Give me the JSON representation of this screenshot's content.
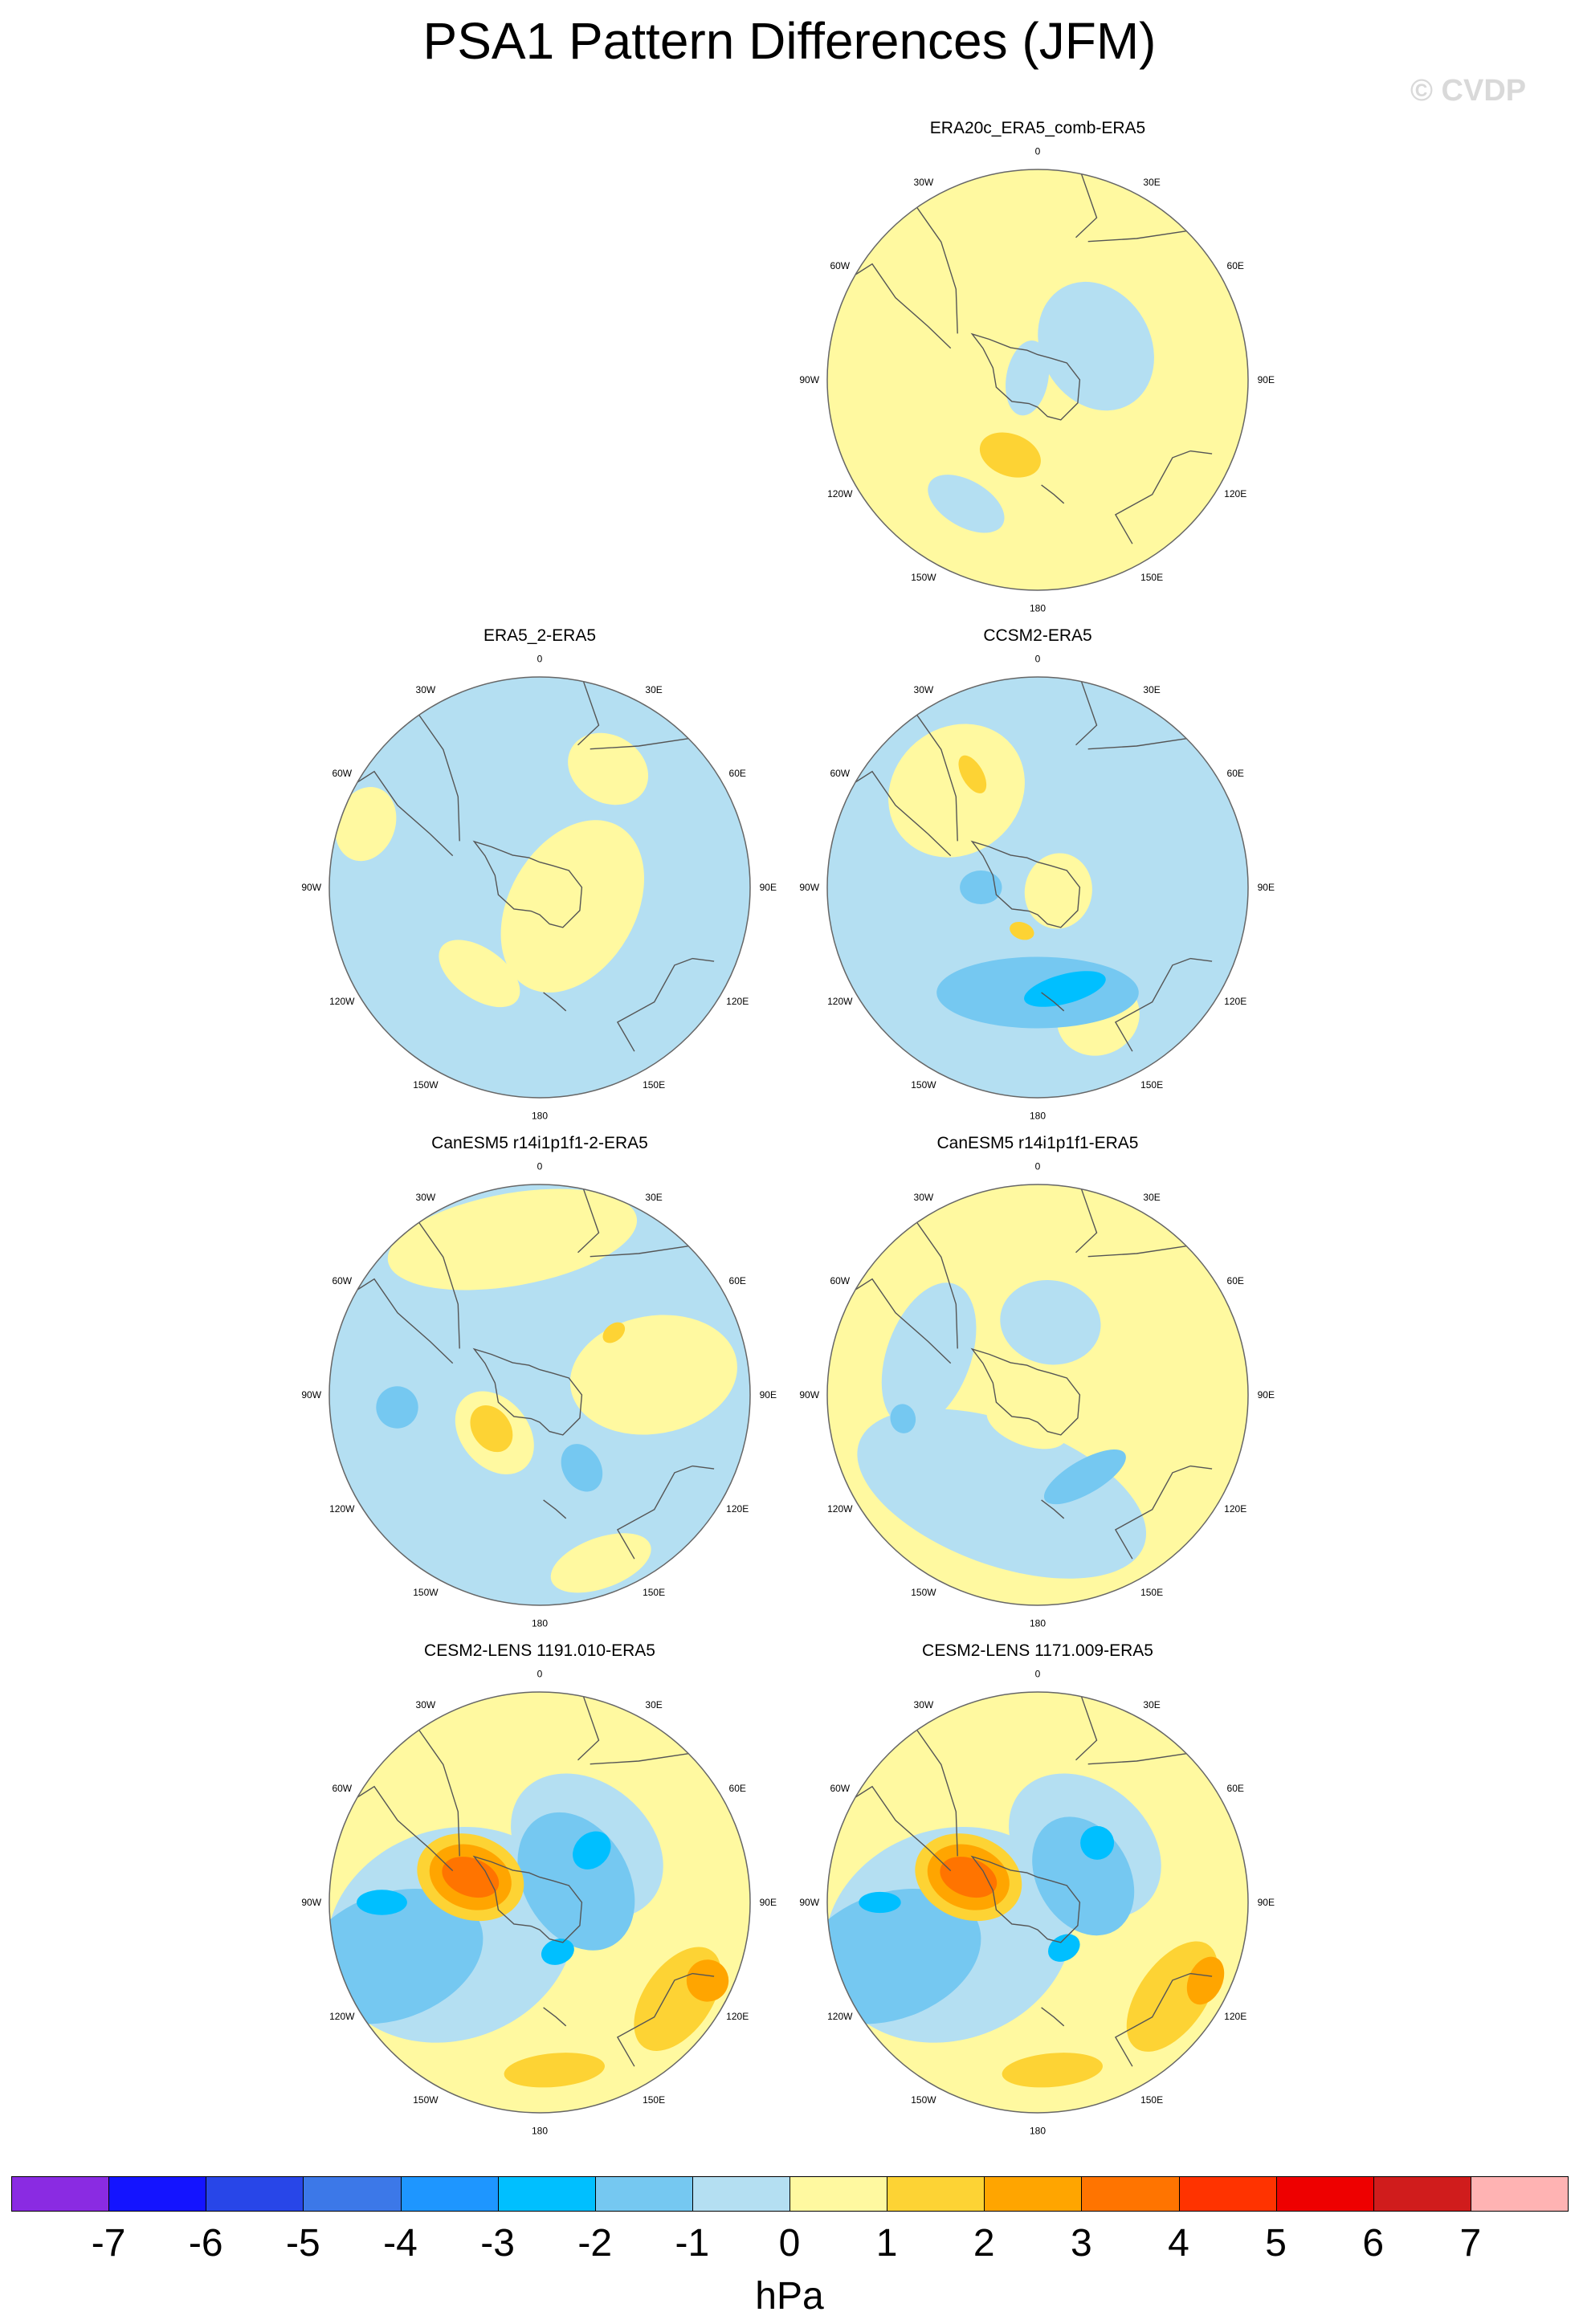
{
  "title": "PSA1 Pattern Differences (JFM)",
  "copyright": "© CVDP",
  "lon_labels": [
    "0",
    "30E",
    "60E",
    "90E",
    "120E",
    "150E",
    "180",
    "150W",
    "120W",
    "90W",
    "60W",
    "30W"
  ],
  "panels": [
    {
      "id": "era20c",
      "title": "ERA20c_ERA5_comb-ERA5",
      "background": "#fff9a0",
      "blobs": [
        {
          "c": "#b4dff2",
          "lon": 60,
          "r": 0.32,
          "rx": 0.32,
          "ry": 0.26
        },
        {
          "c": "#b4dff2",
          "lon": 280,
          "r": 0.05,
          "rx": 0.18,
          "ry": 0.1
        },
        {
          "c": "#fdd334",
          "lon": 200,
          "r": 0.38,
          "rx": 0.15,
          "ry": 0.1
        },
        {
          "c": "#b4dff2",
          "lon": 210,
          "r": 0.68,
          "rx": 0.2,
          "ry": 0.11
        }
      ]
    },
    {
      "id": "era5_2",
      "title": "ERA5_2-ERA5",
      "background": "#b4dff2",
      "blobs": [
        {
          "c": "#fff9a0",
          "lon": 120,
          "r": 0.18,
          "rx": 0.44,
          "ry": 0.3
        },
        {
          "c": "#fff9a0",
          "lon": 30,
          "r": 0.65,
          "rx": 0.2,
          "ry": 0.16
        },
        {
          "c": "#fff9a0",
          "lon": 290,
          "r": 0.88,
          "rx": 0.18,
          "ry": 0.14
        },
        {
          "c": "#fff9a0",
          "lon": 215,
          "r": 0.5,
          "rx": 0.22,
          "ry": 0.12
        }
      ]
    },
    {
      "id": "ccsm2",
      "title": "CCSM2-ERA5",
      "background": "#b4dff2",
      "blobs": [
        {
          "c": "#fff9a0",
          "lon": 320,
          "r": 0.6,
          "rx": 0.34,
          "ry": 0.3
        },
        {
          "c": "#fff9a0",
          "lon": 155,
          "r": 0.68,
          "rx": 0.2,
          "ry": 0.18
        },
        {
          "c": "#fff9a0",
          "lon": 100,
          "r": 0.1,
          "rx": 0.18,
          "ry": 0.16
        },
        {
          "c": "#75c8f1",
          "lon": 180,
          "r": 0.5,
          "rx": 0.48,
          "ry": 0.17
        },
        {
          "c": "#00bfff",
          "lon": 165,
          "r": 0.5,
          "rx": 0.2,
          "ry": 0.07
        },
        {
          "c": "#75c8f1",
          "lon": 270,
          "r": 0.27,
          "rx": 0.08,
          "ry": 0.1
        },
        {
          "c": "#fdd334",
          "lon": 200,
          "r": 0.22,
          "rx": 0.06,
          "ry": 0.04
        },
        {
          "c": "#fdd334",
          "lon": 330,
          "r": 0.62,
          "rx": 0.05,
          "ry": 0.1
        }
      ]
    },
    {
      "id": "canesm_2",
      "title": "CanESM5 r14i1p1f1-2-ERA5",
      "background": "#b4dff2",
      "blobs": [
        {
          "c": "#fff9a0",
          "lon": 350,
          "r": 0.75,
          "rx": 0.6,
          "ry": 0.22
        },
        {
          "c": "#fff9a0",
          "lon": 80,
          "r": 0.55,
          "rx": 0.28,
          "ry": 0.4
        },
        {
          "c": "#fff9a0",
          "lon": 160,
          "r": 0.85,
          "rx": 0.25,
          "ry": 0.12
        },
        {
          "c": "#fff9a0",
          "lon": 230,
          "r": 0.28,
          "rx": 0.22,
          "ry": 0.16
        },
        {
          "c": "#fdd334",
          "lon": 235,
          "r": 0.28,
          "rx": 0.12,
          "ry": 0.09
        },
        {
          "c": "#75c8f1",
          "lon": 150,
          "r": 0.4,
          "rx": 0.09,
          "ry": 0.12
        },
        {
          "c": "#75c8f1",
          "lon": 265,
          "r": 0.68,
          "rx": 0.1,
          "ry": 0.1
        },
        {
          "c": "#fdd334",
          "lon": 50,
          "r": 0.46,
          "rx": 0.04,
          "ry": 0.06
        }
      ]
    },
    {
      "id": "canesm",
      "title": "CanESM5 r14i1p1f1-ERA5",
      "background": "#fff9a0",
      "blobs": [
        {
          "c": "#b4dff2",
          "lon": 200,
          "r": 0.5,
          "rx": 0.72,
          "ry": 0.34
        },
        {
          "c": "#b4dff2",
          "lon": 290,
          "r": 0.55,
          "rx": 0.36,
          "ry": 0.2
        },
        {
          "c": "#b4dff2",
          "lon": 10,
          "r": 0.35,
          "rx": 0.24,
          "ry": 0.2
        },
        {
          "c": "#fff9a0",
          "lon": 200,
          "r": 0.15,
          "rx": 0.2,
          "ry": 0.1
        },
        {
          "c": "#75c8f1",
          "lon": 150,
          "r": 0.45,
          "rx": 0.22,
          "ry": 0.08
        },
        {
          "c": "#75c8f1",
          "lon": 260,
          "r": 0.65,
          "rx": 0.07,
          "ry": 0.06
        }
      ]
    },
    {
      "id": "cesm_1191",
      "title": "CESM2-LENS 1191.010-ERA5",
      "background": "#fff9a0",
      "blobs": [
        {
          "c": "#b4dff2",
          "lon": 250,
          "r": 0.45,
          "rx": 0.5,
          "ry": 0.6
        },
        {
          "c": "#b4dff2",
          "lon": 40,
          "r": 0.35,
          "rx": 0.4,
          "ry": 0.3
        },
        {
          "c": "#75c8f1",
          "lon": 250,
          "r": 0.75,
          "rx": 0.3,
          "ry": 0.45
        },
        {
          "c": "#75c8f1",
          "lon": 60,
          "r": 0.2,
          "rx": 0.35,
          "ry": 0.25
        },
        {
          "c": "#00bfff",
          "lon": 45,
          "r": 0.35,
          "rx": 0.08,
          "ry": 0.1
        },
        {
          "c": "#00bfff",
          "lon": 270,
          "r": 0.75,
          "rx": 0.06,
          "ry": 0.12
        },
        {
          "c": "#00bfff",
          "lon": 160,
          "r": 0.25,
          "rx": 0.08,
          "ry": 0.06
        },
        {
          "c": "#fdd334",
          "lon": 290,
          "r": 0.35,
          "rx": 0.2,
          "ry": 0.26
        },
        {
          "c": "#ffa500",
          "lon": 290,
          "r": 0.35,
          "rx": 0.15,
          "ry": 0.2
        },
        {
          "c": "#ff7400",
          "lon": 290,
          "r": 0.35,
          "rx": 0.09,
          "ry": 0.14
        },
        {
          "c": "#fdd334",
          "lon": 125,
          "r": 0.8,
          "rx": 0.28,
          "ry": 0.16
        },
        {
          "c": "#ffa500",
          "lon": 115,
          "r": 0.88,
          "rx": 0.1,
          "ry": 0.1
        },
        {
          "c": "#fdd334",
          "lon": 175,
          "r": 0.8,
          "rx": 0.24,
          "ry": 0.08
        }
      ]
    },
    {
      "id": "cesm_1171",
      "title": "CESM2-LENS 1171.009-ERA5",
      "background": "#fff9a0",
      "blobs": [
        {
          "c": "#b4dff2",
          "lon": 250,
          "r": 0.45,
          "rx": 0.5,
          "ry": 0.6
        },
        {
          "c": "#b4dff2",
          "lon": 40,
          "r": 0.35,
          "rx": 0.4,
          "ry": 0.3
        },
        {
          "c": "#75c8f1",
          "lon": 250,
          "r": 0.75,
          "rx": 0.3,
          "ry": 0.45
        },
        {
          "c": "#75c8f1",
          "lon": 60,
          "r": 0.25,
          "rx": 0.3,
          "ry": 0.22
        },
        {
          "c": "#00bfff",
          "lon": 45,
          "r": 0.4,
          "rx": 0.08,
          "ry": 0.08
        },
        {
          "c": "#00bfff",
          "lon": 270,
          "r": 0.75,
          "rx": 0.05,
          "ry": 0.1
        },
        {
          "c": "#00bfff",
          "lon": 150,
          "r": 0.25,
          "rx": 0.08,
          "ry": 0.06
        },
        {
          "c": "#fdd334",
          "lon": 290,
          "r": 0.35,
          "rx": 0.2,
          "ry": 0.26
        },
        {
          "c": "#ffa500",
          "lon": 290,
          "r": 0.35,
          "rx": 0.15,
          "ry": 0.2
        },
        {
          "c": "#ff7400",
          "lon": 290,
          "r": 0.35,
          "rx": 0.09,
          "ry": 0.14
        },
        {
          "c": "#fdd334",
          "lon": 125,
          "r": 0.78,
          "rx": 0.3,
          "ry": 0.16
        },
        {
          "c": "#ffa500",
          "lon": 115,
          "r": 0.88,
          "rx": 0.12,
          "ry": 0.08
        },
        {
          "c": "#fdd334",
          "lon": 175,
          "r": 0.8,
          "rx": 0.24,
          "ry": 0.08
        }
      ]
    }
  ],
  "colorbar": {
    "colors": [
      "#8a2be2",
      "#1414ff",
      "#2846e8",
      "#3c78e8",
      "#1e96ff",
      "#00bfff",
      "#75c8f1",
      "#b4dff2",
      "#fff9a0",
      "#fdd334",
      "#ffa500",
      "#ff7400",
      "#ff3300",
      "#ee0000",
      "#d01c1c",
      "#ffb3b3"
    ],
    "labels": [
      "-7",
      "-6",
      "-5",
      "-4",
      "-3",
      "-2",
      "-1",
      "0",
      "1",
      "2",
      "3",
      "4",
      "5",
      "6",
      "7"
    ],
    "units": "hPa"
  }
}
